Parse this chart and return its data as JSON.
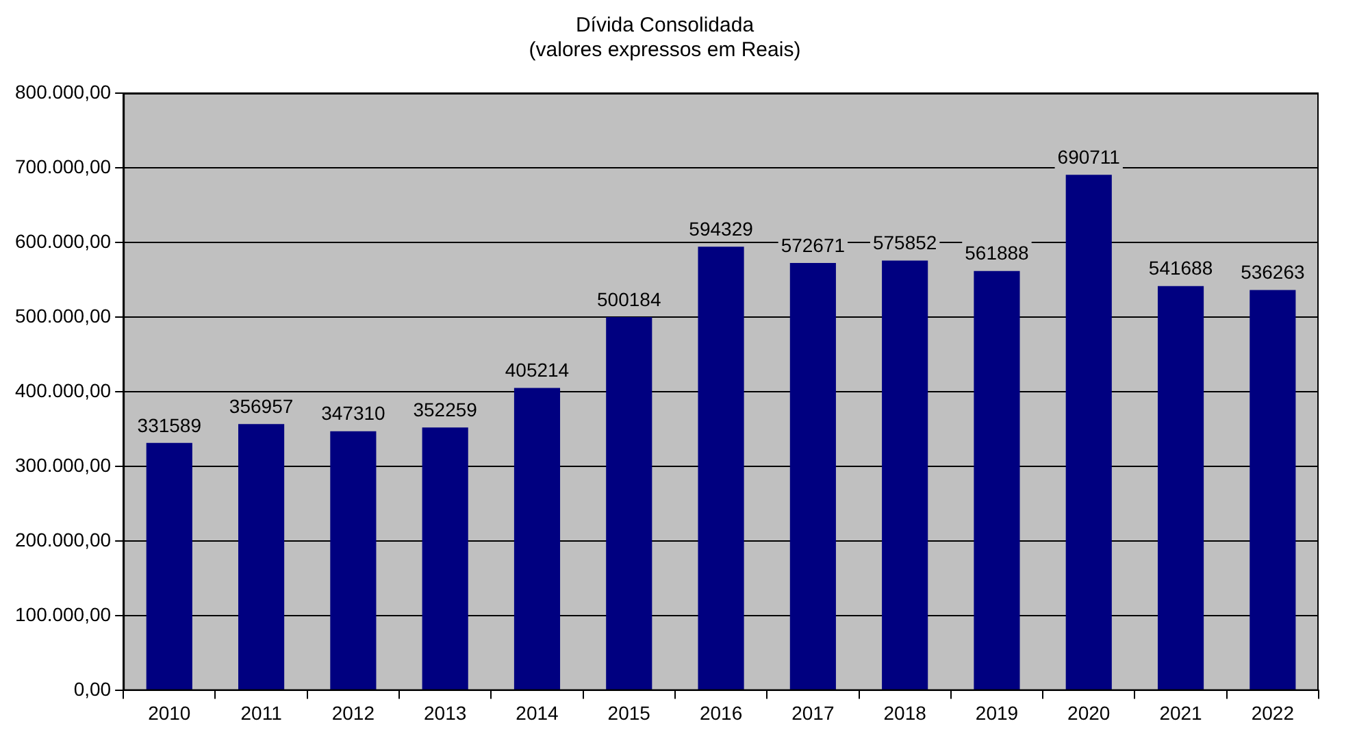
{
  "chart_data": {
    "type": "bar",
    "title": "Dívida Consolidada",
    "subtitle": "(valores expressos em Reais)",
    "categories": [
      "2010",
      "2011",
      "2012",
      "2013",
      "2014",
      "2015",
      "2016",
      "2017",
      "2018",
      "2019",
      "2020",
      "2021",
      "2022"
    ],
    "values": [
      331589,
      356957,
      347310,
      352259,
      405214,
      500184,
      594329,
      572671,
      575852,
      561888,
      690711,
      541688,
      536263
    ],
    "color": "#000080",
    "ylim": [
      0,
      800000
    ],
    "yticks": [
      {
        "value": 0,
        "label": "0,00"
      },
      {
        "value": 100000,
        "label": "100.000,00"
      },
      {
        "value": 200000,
        "label": "200.000,00"
      },
      {
        "value": 300000,
        "label": "300.000,00"
      },
      {
        "value": 400000,
        "label": "400.000,00"
      },
      {
        "value": 500000,
        "label": "500.000,00"
      },
      {
        "value": 600000,
        "label": "600.000,00"
      },
      {
        "value": 700000,
        "label": "700.000,00"
      },
      {
        "value": 800000,
        "label": "800.000,00"
      }
    ],
    "grid": "y",
    "data_labels": true,
    "legend": false
  }
}
